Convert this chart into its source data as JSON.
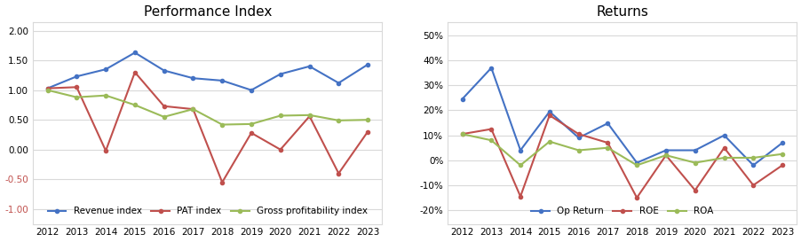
{
  "years": [
    2012,
    2013,
    2014,
    2015,
    2016,
    2017,
    2018,
    2019,
    2020,
    2021,
    2022,
    2023
  ],
  "chart1": {
    "title": "Performance Index",
    "revenue_index": [
      1.03,
      1.23,
      1.35,
      1.63,
      1.33,
      1.2,
      1.16,
      1.0,
      1.27,
      1.4,
      1.12,
      1.43
    ],
    "pat_index": [
      1.03,
      1.05,
      -0.02,
      1.3,
      0.73,
      0.68,
      -0.55,
      0.28,
      0.0,
      0.56,
      -0.4,
      0.3
    ],
    "gp_index": [
      1.0,
      0.88,
      0.91,
      0.75,
      0.55,
      0.68,
      0.42,
      0.43,
      0.57,
      0.58,
      0.49,
      0.5
    ],
    "ylim": [
      -1.25,
      2.15
    ],
    "yticks": [
      -1.0,
      -0.5,
      0.0,
      0.5,
      1.0,
      1.5,
      2.0
    ],
    "legend_labels": [
      "Revenue index",
      "PAT index",
      "Gross profitability index"
    ],
    "line_colors": [
      "#4472C4",
      "#C0504D",
      "#9BBB59"
    ]
  },
  "chart2": {
    "title": "Returns",
    "op_return": [
      0.245,
      0.37,
      0.04,
      0.195,
      0.09,
      0.148,
      -0.01,
      0.04,
      0.04,
      0.1,
      -0.02,
      0.07
    ],
    "roe": [
      0.105,
      0.125,
      -0.145,
      0.18,
      0.105,
      0.07,
      -0.15,
      0.02,
      -0.12,
      0.05,
      -0.1,
      -0.02
    ],
    "roa": [
      0.105,
      0.08,
      -0.02,
      0.075,
      0.04,
      0.05,
      -0.02,
      0.02,
      -0.01,
      0.01,
      0.01,
      0.025
    ],
    "ylim": [
      -0.255,
      0.555
    ],
    "yticks": [
      -0.2,
      -0.1,
      0.0,
      0.1,
      0.2,
      0.3,
      0.4,
      0.5
    ],
    "legend_labels": [
      "Op Return",
      "ROE",
      "ROA"
    ],
    "line_colors": [
      "#4472C4",
      "#C0504D",
      "#9BBB59"
    ]
  },
  "fig_width": 9.03,
  "fig_height": 2.73,
  "dpi": 100,
  "background_color": "#FFFFFF",
  "grid_color": "#D9D9D9",
  "border_color": "#D9D9D9",
  "title_fontsize": 11,
  "tick_fontsize": 7.5,
  "legend_fontsize": 7.5,
  "negative_ytick_color": "#C0504D"
}
